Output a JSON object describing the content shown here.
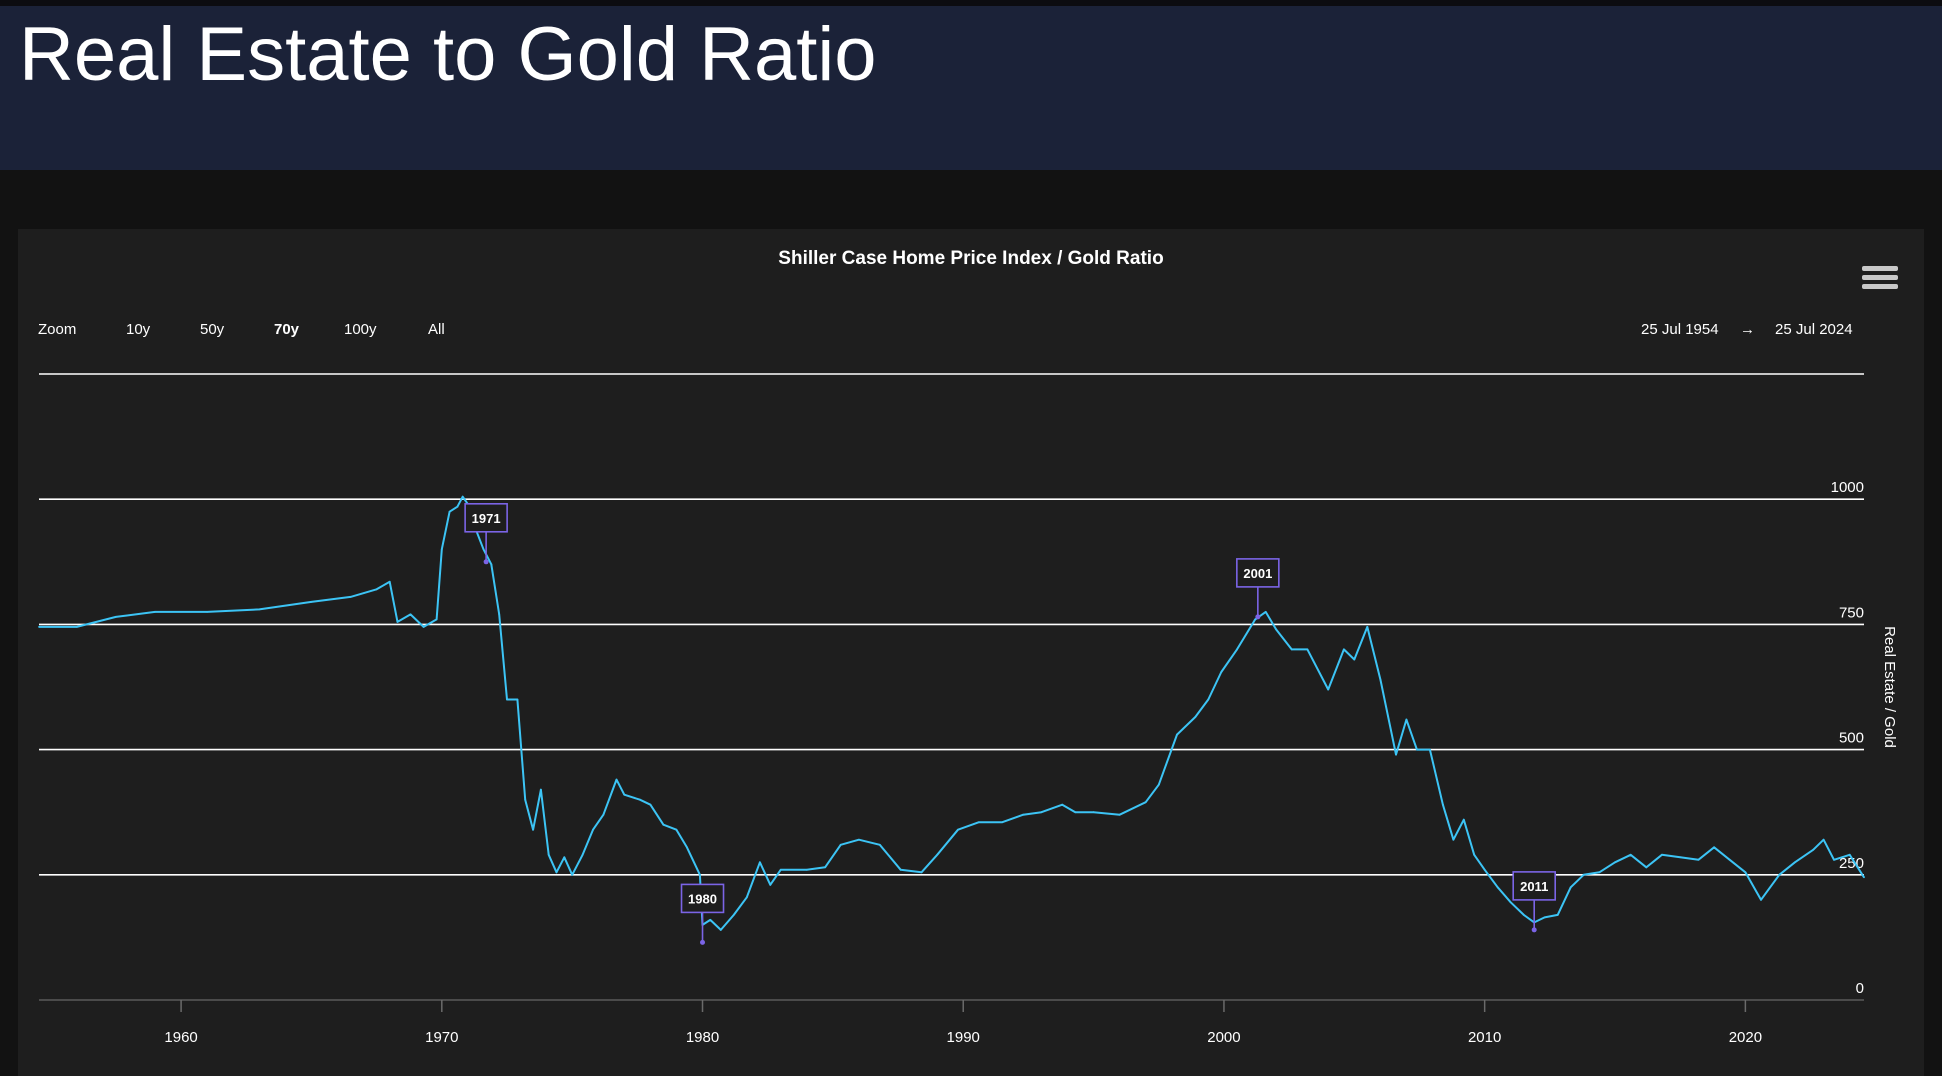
{
  "page": {
    "title": "Real Estate to Gold Ratio"
  },
  "toolbar": {
    "zoom_label": "Zoom",
    "zoom_buttons": [
      "10y",
      "50y",
      "70y",
      "100y",
      "All"
    ],
    "active_zoom": "70y",
    "range_from": "25 Jul 1954",
    "range_arrow": "→",
    "range_to": "25 Jul 2024",
    "menu_icon": "hamburger-menu-icon"
  },
  "colors": {
    "series": "#3cc4f5",
    "flag_border": "#7b64e6",
    "gridline": "#ffffff",
    "banner": "#1b2238"
  },
  "chart_data": {
    "type": "line",
    "title": "Shiller Case Home Price Index / Gold Ratio",
    "xlabel": "",
    "ylabel": "Real Estate / Gold",
    "xlim": [
      1954.55,
      2024.55
    ],
    "ylim": [
      0,
      1250
    ],
    "y_axis_side": "right",
    "yticks": [
      0,
      250,
      500,
      750,
      1000
    ],
    "xticks": [
      1960,
      1970,
      1980,
      1990,
      2000,
      2010,
      2020
    ],
    "grid": true,
    "legend": "none",
    "series": [
      {
        "values": [
          [
            1954.55,
            745
          ],
          [
            1956.0,
            745
          ],
          [
            1957.5,
            765
          ],
          [
            1959.0,
            775
          ],
          [
            1961.0,
            775
          ],
          [
            1963.0,
            780
          ],
          [
            1965.0,
            795
          ],
          [
            1966.5,
            805
          ],
          [
            1967.5,
            820
          ],
          [
            1968.0,
            835
          ],
          [
            1968.3,
            755
          ],
          [
            1968.8,
            770
          ],
          [
            1969.3,
            745
          ],
          [
            1969.8,
            760
          ],
          [
            1970.0,
            900
          ],
          [
            1970.3,
            975
          ],
          [
            1970.6,
            985
          ],
          [
            1970.8,
            1005
          ],
          [
            1971.0,
            990
          ],
          [
            1971.3,
            940
          ],
          [
            1971.6,
            900
          ],
          [
            1971.9,
            870
          ],
          [
            1972.2,
            770
          ],
          [
            1972.5,
            600
          ],
          [
            1972.9,
            600
          ],
          [
            1973.2,
            400
          ],
          [
            1973.5,
            340
          ],
          [
            1973.8,
            420
          ],
          [
            1974.1,
            290
          ],
          [
            1974.4,
            255
          ],
          [
            1974.7,
            285
          ],
          [
            1975.0,
            250
          ],
          [
            1975.4,
            290
          ],
          [
            1975.8,
            340
          ],
          [
            1976.2,
            370
          ],
          [
            1976.7,
            440
          ],
          [
            1977.0,
            410
          ],
          [
            1977.6,
            400
          ],
          [
            1978.0,
            390
          ],
          [
            1978.5,
            350
          ],
          [
            1979.0,
            340
          ],
          [
            1979.4,
            305
          ],
          [
            1979.9,
            250
          ],
          [
            1980.0,
            150
          ],
          [
            1980.3,
            160
          ],
          [
            1980.7,
            140
          ],
          [
            1981.2,
            170
          ],
          [
            1981.7,
            205
          ],
          [
            1982.2,
            275
          ],
          [
            1982.6,
            230
          ],
          [
            1983.0,
            260
          ],
          [
            1984.0,
            260
          ],
          [
            1984.7,
            265
          ],
          [
            1985.3,
            310
          ],
          [
            1986.0,
            320
          ],
          [
            1986.8,
            310
          ],
          [
            1987.6,
            260
          ],
          [
            1988.4,
            255
          ],
          [
            1989.0,
            290
          ],
          [
            1989.8,
            340
          ],
          [
            1990.6,
            355
          ],
          [
            1991.5,
            355
          ],
          [
            1992.3,
            370
          ],
          [
            1993.0,
            375
          ],
          [
            1993.8,
            390
          ],
          [
            1994.3,
            375
          ],
          [
            1995.0,
            375
          ],
          [
            1996.0,
            370
          ],
          [
            1997.0,
            395
          ],
          [
            1997.5,
            430
          ],
          [
            1998.2,
            530
          ],
          [
            1998.9,
            565
          ],
          [
            1999.4,
            600
          ],
          [
            1999.9,
            655
          ],
          [
            2000.5,
            700
          ],
          [
            2001.2,
            760
          ],
          [
            2001.6,
            775
          ],
          [
            2002.0,
            740
          ],
          [
            2002.6,
            700
          ],
          [
            2003.2,
            700
          ],
          [
            2004.0,
            620
          ],
          [
            2004.6,
            700
          ],
          [
            2005.0,
            680
          ],
          [
            2005.5,
            745
          ],
          [
            2006.0,
            640
          ],
          [
            2006.6,
            490
          ],
          [
            2007.0,
            560
          ],
          [
            2007.4,
            500
          ],
          [
            2007.9,
            500
          ],
          [
            2008.4,
            390
          ],
          [
            2008.8,
            320
          ],
          [
            2009.2,
            360
          ],
          [
            2009.6,
            290
          ],
          [
            2010.0,
            260
          ],
          [
            2010.5,
            225
          ],
          [
            2011.0,
            195
          ],
          [
            2011.5,
            170
          ],
          [
            2011.9,
            155
          ],
          [
            2012.3,
            165
          ],
          [
            2012.8,
            170
          ],
          [
            2013.3,
            225
          ],
          [
            2013.8,
            250
          ],
          [
            2014.4,
            255
          ],
          [
            2015.0,
            275
          ],
          [
            2015.6,
            290
          ],
          [
            2016.2,
            265
          ],
          [
            2016.8,
            290
          ],
          [
            2017.5,
            285
          ],
          [
            2018.2,
            280
          ],
          [
            2018.8,
            305
          ],
          [
            2019.4,
            280
          ],
          [
            2020.0,
            255
          ],
          [
            2020.6,
            200
          ],
          [
            2021.3,
            250
          ],
          [
            2021.9,
            275
          ],
          [
            2022.6,
            300
          ],
          [
            2023.0,
            320
          ],
          [
            2023.4,
            280
          ],
          [
            2024.0,
            290
          ],
          [
            2024.55,
            245
          ]
        ]
      }
    ],
    "annotations": [
      {
        "label": "1971",
        "x": 1971.7,
        "y": 875
      },
      {
        "label": "1980",
        "x": 1980.0,
        "y": 115
      },
      {
        "label": "2001",
        "x": 2001.3,
        "y": 765
      },
      {
        "label": "2011",
        "x": 2011.9,
        "y": 140
      }
    ]
  }
}
